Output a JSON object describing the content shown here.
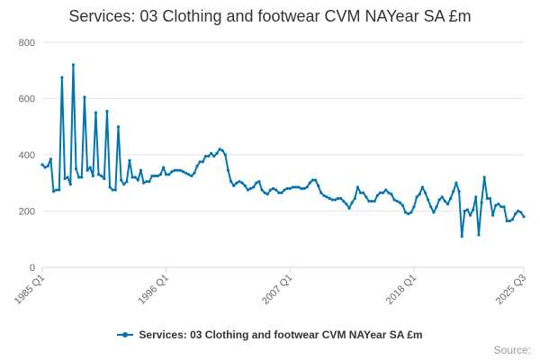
{
  "chart_data": {
    "type": "line",
    "title": "Services: 03 Clothing and footwear CVM NAYear SA £m",
    "xlabel": "",
    "ylabel": "",
    "ylim": [
      0,
      800
    ],
    "yticks": [
      0,
      200,
      400,
      600,
      800
    ],
    "xticks": [
      "1985 Q1",
      "1996 Q1",
      "2007 Q1",
      "2018 Q1",
      "2025 Q3"
    ],
    "grid": true,
    "legend_position": "bottom",
    "series": [
      {
        "name": "Services: 03 Clothing and footwear CVM NAYear SA £m",
        "color": "#0075b0",
        "x_start": "1985 Q1",
        "x_end": "2025 Q3",
        "values": [
          365,
          355,
          360,
          385,
          270,
          275,
          275,
          675,
          315,
          320,
          295,
          720,
          350,
          320,
          320,
          605,
          345,
          355,
          325,
          550,
          330,
          325,
          315,
          555,
          285,
          275,
          275,
          500,
          310,
          295,
          305,
          380,
          320,
          320,
          310,
          345,
          300,
          305,
          305,
          325,
          325,
          325,
          330,
          355,
          330,
          330,
          340,
          345,
          345,
          345,
          340,
          335,
          330,
          325,
          335,
          360,
          375,
          375,
          395,
          395,
          405,
          395,
          405,
          420,
          415,
          400,
          345,
          305,
          290,
          300,
          305,
          300,
          290,
          275,
          280,
          285,
          300,
          305,
          275,
          265,
          260,
          275,
          280,
          275,
          265,
          265,
          275,
          280,
          280,
          285,
          285,
          285,
          280,
          280,
          285,
          300,
          310,
          310,
          290,
          265,
          255,
          250,
          245,
          240,
          240,
          245,
          245,
          235,
          225,
          210,
          230,
          245,
          285,
          265,
          265,
          250,
          235,
          235,
          235,
          255,
          265,
          265,
          275,
          265,
          260,
          240,
          235,
          230,
          220,
          195,
          190,
          195,
          215,
          250,
          260,
          285,
          265,
          240,
          215,
          195,
          215,
          240,
          250,
          235,
          225,
          245,
          270,
          300,
          270,
          110,
          200,
          205,
          185,
          205,
          250,
          115,
          230,
          320,
          245,
          245,
          185,
          220,
          225,
          215,
          215,
          165,
          165,
          170,
          190,
          200,
          195,
          180
        ]
      }
    ]
  },
  "legend": {
    "label": "Services: 03 Clothing and footwear CVM NAYear SA £m"
  },
  "credits": {
    "label": "Source:"
  }
}
